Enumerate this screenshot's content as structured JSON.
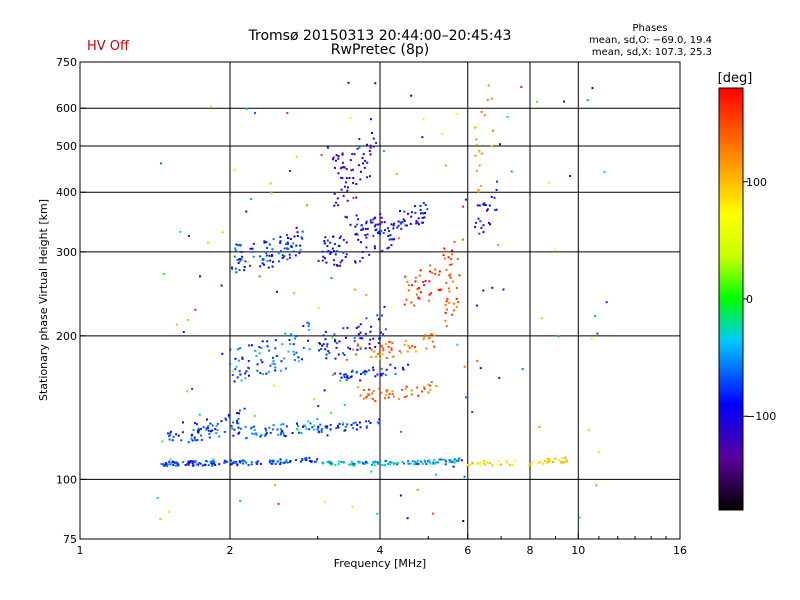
{
  "header": {
    "title_line1": "Tromsø 20150313 20:44:00–20:45:43",
    "title_line2": "RwPretec (8p)",
    "status": "HV Off",
    "status_color": "#cc0000",
    "phases": {
      "title": "Phases",
      "line_o": "mean, sd,O: −69.0, 19.4",
      "line_x": "mean, sd,X: 107.3, 25.3"
    }
  },
  "chart_data": {
    "type": "scatter",
    "xlabel": "Frequency [MHz]",
    "ylabel": "Stationary phase Virtual Height [km]",
    "x_scale": "log",
    "y_scale": "log",
    "xlim": [
      1,
      16
    ],
    "ylim": [
      75,
      750
    ],
    "x_ticks": [
      1,
      2,
      4,
      6,
      8,
      10,
      16
    ],
    "x_tick_labels": [
      "1",
      "2",
      "4",
      "6",
      "8",
      "10",
      "16"
    ],
    "x_grid": [
      2,
      4,
      6,
      8,
      10
    ],
    "y_ticks": [
      75,
      100,
      200,
      300,
      400,
      500,
      600,
      750
    ],
    "y_tick_labels": [
      "75",
      "100",
      "200",
      "300",
      "400",
      "500",
      "600",
      "750"
    ],
    "y_grid": [
      100,
      200,
      300,
      400,
      500,
      600
    ],
    "grid": true,
    "colorbar": {
      "label": "[deg]",
      "range": [
        -180,
        180
      ],
      "ticks": [
        100,
        0,
        -100
      ],
      "tick_labels": [
        "100",
        "0",
        "−100"
      ]
    },
    "traces": [
      {
        "name": "",
        "x_range": [
          1.45,
          3.0
        ],
        "height": 108,
        "phase": -78,
        "n": 140,
        "spread": 0.012
      },
      {
        "name": "",
        "x_range": [
          3.0,
          5.8
        ],
        "height": 108,
        "phase": -45,
        "n": 110,
        "spread": 0.01
      },
      {
        "name": "",
        "x_range": [
          6.0,
          9.5
        ],
        "height": 108,
        "phase": 95,
        "n": 50,
        "spread": 0.012
      },
      {
        "name": "",
        "x_range": [
          1.5,
          2.1
        ],
        "height": 125,
        "phase": -70,
        "n": 70,
        "spread": 0.05
      },
      {
        "name": "",
        "x_range": [
          2.0,
          3.0
        ],
        "height": 125,
        "phase": -65,
        "n": 60,
        "spread": 0.03
      },
      {
        "name": "",
        "x_range": [
          3.0,
          4.0
        ],
        "height": 128,
        "phase": -75,
        "n": 40,
        "spread": 0.02
      },
      {
        "name": "",
        "x_range": [
          3.6,
          5.2
        ],
        "height": 150,
        "phase": 140,
        "n": 45,
        "spread": 0.03
      },
      {
        "name": "",
        "x_range": [
          3.2,
          4.6
        ],
        "height": 165,
        "phase": -80,
        "n": 40,
        "spread": 0.03
      },
      {
        "name": "",
        "x_range": [
          3.4,
          5.2
        ],
        "height": 185,
        "phase": 130,
        "n": 50,
        "spread": 0.04
      },
      {
        "name": "",
        "x_range": [
          2.0,
          2.9
        ],
        "height": 175,
        "phase": -65,
        "n": 80,
        "spread": 0.09
      },
      {
        "name": "",
        "x_range": [
          3.0,
          4.1
        ],
        "height": 190,
        "phase": -90,
        "n": 60,
        "spread": 0.08
      },
      {
        "name": "",
        "x_range": [
          2.0,
          2.8
        ],
        "height": 290,
        "phase": -75,
        "n": 90,
        "spread": 0.07
      },
      {
        "name": "",
        "x_range": [
          3.0,
          4.3
        ],
        "height": 300,
        "phase": -100,
        "n": 80,
        "spread": 0.08
      },
      {
        "name": "",
        "x_range": [
          3.4,
          5.0
        ],
        "height": 340,
        "phase": -95,
        "n": 70,
        "spread": 0.05
      },
      {
        "name": "",
        "x_range": [
          3.2,
          3.9
        ],
        "height": 420,
        "phase": -110,
        "n": 60,
        "spread": 0.14
      },
      {
        "name": "",
        "x_range": [
          4.4,
          5.6
        ],
        "height": 250,
        "phase": 160,
        "n": 45,
        "spread": 0.1
      },
      {
        "name": "",
        "x_range": [
          5.4,
          5.9
        ],
        "height": 250,
        "phase": 150,
        "n": 30,
        "spread": 0.2
      },
      {
        "name": "",
        "x_range": [
          6.2,
          6.9
        ],
        "height": 350,
        "phase": -95,
        "n": 25,
        "spread": 0.08
      },
      {
        "name": "",
        "x_range": [
          6.2,
          6.8
        ],
        "height": 480,
        "phase": 110,
        "n": 20,
        "spread": 0.2
      },
      {
        "name": "",
        "x_range": [
          1.4,
          11.5
        ],
        "height": 250,
        "phase": 0,
        "n": 140,
        "spread": 0.5
      }
    ]
  }
}
